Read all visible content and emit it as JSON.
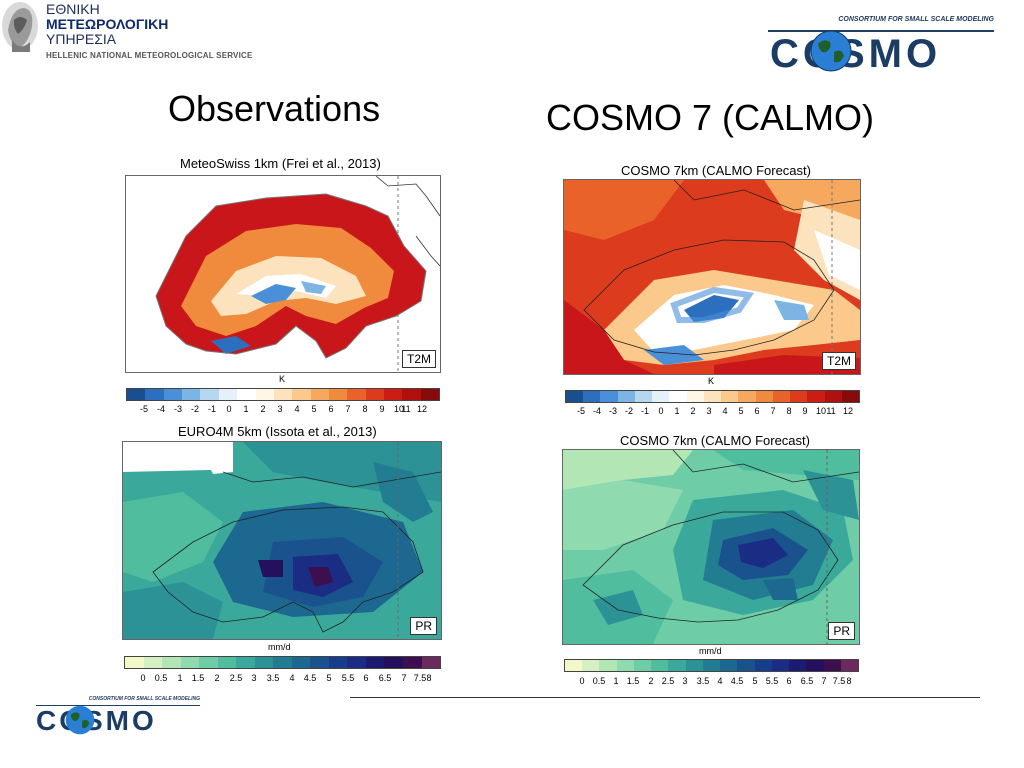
{
  "header": {
    "hnms": {
      "line1": "ΕΘΝΙΚΗ",
      "line2": "ΜΕΤΕΩΡΟΛΟΓΙΚΗ",
      "line3": "ΥΠΗΡΕΣΙΑ",
      "line4": "HELLENIC NATIONAL METEOROLOGICAL SERVICE"
    },
    "cosmo_logo": {
      "tagline": "CONSORTIUM FOR SMALL SCALE MODELING",
      "word": "COSMO"
    }
  },
  "columns": {
    "left": "Observations",
    "right": "COSMO 7 (CALMO)"
  },
  "panels": {
    "obs_t2m": {
      "title": "MeteoSwiss 1km (Frei et al., 2013)",
      "badge": "T2M",
      "unit": "K"
    },
    "model_t2m": {
      "title": "COSMO 7km (CALMO Forecast)",
      "badge": "T2M",
      "unit": "K"
    },
    "obs_pr": {
      "title": "EURO4M 5km (Issota et al., 2013)",
      "badge": "PR",
      "unit": "mm/d"
    },
    "model_pr": {
      "title": "COSMO 7km (CALMO Forecast)",
      "badge": "PR",
      "unit": "mm/d"
    }
  },
  "scales": {
    "temperature": {
      "ticks": [
        "-5",
        "-4",
        "-3",
        "-2",
        "-1",
        "0",
        "1",
        "2",
        "3",
        "4",
        "5",
        "6",
        "7",
        "8",
        "9",
        "10",
        "11",
        "12"
      ],
      "colors": [
        "#1a4f8f",
        "#2c6fbe",
        "#4a90d9",
        "#7cb4e3",
        "#b6d8ee",
        "#e4f1f8",
        "#ffffff",
        "#fff7e6",
        "#fde3bd",
        "#fbc98c",
        "#f6a95e",
        "#f08a3c",
        "#e8622a",
        "#dc3b1e",
        "#cc1d14",
        "#b0100e",
        "#870b0b"
      ]
    },
    "precip": {
      "ticks": [
        "0",
        "0.5",
        "1",
        "1.5",
        "2",
        "2.5",
        "3",
        "3.5",
        "4",
        "4.5",
        "5",
        "5.5",
        "6",
        "6.5",
        "7",
        "7.5",
        "8"
      ],
      "colors": [
        "#f2f8c8",
        "#d5f0c2",
        "#b3e6b5",
        "#8fdaae",
        "#6ecda6",
        "#4fbd9e",
        "#3aa89b",
        "#2d9296",
        "#237d92",
        "#1d6890",
        "#19528d",
        "#173e8a",
        "#1a2c83",
        "#1d1a72",
        "#24105c",
        "#3d0f4f",
        "#6a2a5d"
      ]
    }
  },
  "footer": {
    "cosmo_logo": {
      "tagline": "CONSORTIUM FOR SMALL SCALE MODELING",
      "word": "COSMO"
    }
  }
}
